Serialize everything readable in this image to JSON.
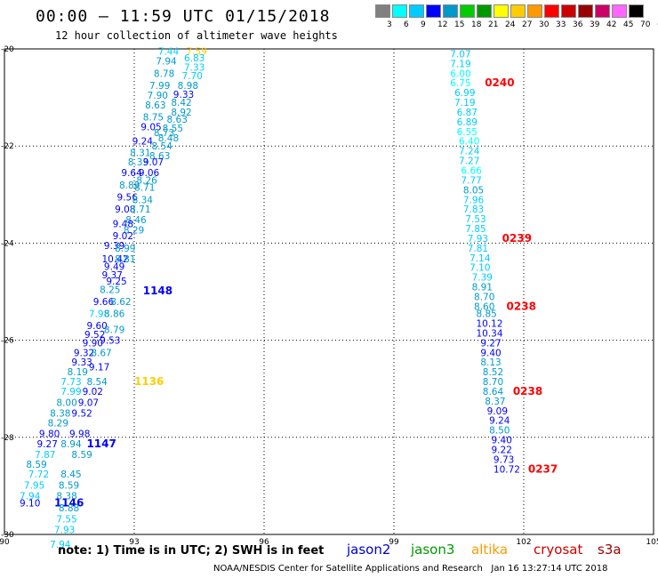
{
  "header": {
    "title": "00:00 – 11:59 UTC 01/15/2018",
    "subtitle": "12 hour collection of altimeter wave heights"
  },
  "colorbar": {
    "colors": [
      "#808080",
      "#00ffff",
      "#00ccff",
      "#0000ff",
      "#0099cc",
      "#00cc00",
      "#009900",
      "#ffff00",
      "#ffcc00",
      "#ff9900",
      "#ff0000",
      "#cc0000",
      "#990000",
      "#cc0066",
      "#ff66ff",
      "#000000"
    ],
    "labels": [
      "3",
      "6",
      "9",
      "12",
      "15",
      "18",
      "21",
      "24",
      "27",
      "30",
      "33",
      "36",
      "39",
      "42",
      "45",
      "70",
      "(ft)"
    ]
  },
  "axes": {
    "x_ticks": [
      "90",
      "93",
      "96",
      "99",
      "102",
      "105"
    ],
    "y_ticks": [
      "-20",
      "-22",
      "-24",
      "-26",
      "-28",
      "-30"
    ]
  },
  "chart_data": {
    "type": "scatter",
    "xlim": [
      90,
      105
    ],
    "ylim": [
      -30,
      -20
    ],
    "grid": true,
    "points": [
      {
        "x": 93.55,
        "y": -20.05,
        "v": "7.44",
        "c": "#00ccff"
      },
      {
        "x": 94.2,
        "y": -20.05,
        "v": "7.59",
        "c": "#ffcc00"
      },
      {
        "x": 94.15,
        "y": -20.18,
        "v": "6.83",
        "c": "#00ccff"
      },
      {
        "x": 93.5,
        "y": -20.25,
        "v": "7.94",
        "c": "#0099cc"
      },
      {
        "x": 94.15,
        "y": -20.38,
        "v": "7.33",
        "c": "#00ccff"
      },
      {
        "x": 93.45,
        "y": -20.5,
        "v": "8.78",
        "c": "#0099cc"
      },
      {
        "x": 94.1,
        "y": -20.55,
        "v": "7.70",
        "c": "#00ccff"
      },
      {
        "x": 93.35,
        "y": -20.75,
        "v": "7.99",
        "c": "#0099cc"
      },
      {
        "x": 94.0,
        "y": -20.75,
        "v": "8.98",
        "c": "#0099cc"
      },
      {
        "x": 93.3,
        "y": -20.95,
        "v": "7.90",
        "c": "#0099cc"
      },
      {
        "x": 93.9,
        "y": -20.93,
        "v": "9.33",
        "c": "#0000ff"
      },
      {
        "x": 93.25,
        "y": -21.15,
        "v": "8.63",
        "c": "#0099cc"
      },
      {
        "x": 93.85,
        "y": -21.1,
        "v": "8.42",
        "c": "#0099cc"
      },
      {
        "x": 93.85,
        "y": -21.3,
        "v": "8.92",
        "c": "#0099cc"
      },
      {
        "x": 93.2,
        "y": -21.4,
        "v": "8.75",
        "c": "#0099cc"
      },
      {
        "x": 93.75,
        "y": -21.45,
        "v": "8.63",
        "c": "#0099cc"
      },
      {
        "x": 93.15,
        "y": -21.6,
        "v": "9.05",
        "c": "#0000ff"
      },
      {
        "x": 93.65,
        "y": -21.63,
        "v": "8.55",
        "c": "#0099cc"
      },
      {
        "x": 93.45,
        "y": -21.72,
        "v": "8.73",
        "c": "#0099cc"
      },
      {
        "x": 93.55,
        "y": -21.83,
        "v": "8.48",
        "c": "#0099cc"
      },
      {
        "x": 92.95,
        "y": -21.9,
        "v": "9.24",
        "c": "#0000ff"
      },
      {
        "x": 93.4,
        "y": -22.0,
        "v": "8.54",
        "c": "#0099cc"
      },
      {
        "x": 92.9,
        "y": -22.13,
        "v": "8.31",
        "c": "#0099cc"
      },
      {
        "x": 93.35,
        "y": -22.2,
        "v": "8.63",
        "c": "#0099cc"
      },
      {
        "x": 92.85,
        "y": -22.33,
        "v": "8.33",
        "c": "#0099cc"
      },
      {
        "x": 93.2,
        "y": -22.33,
        "v": "9.07",
        "c": "#0000ff"
      },
      {
        "x": 92.7,
        "y": -22.55,
        "v": "9.64",
        "c": "#0000ff"
      },
      {
        "x": 93.1,
        "y": -22.55,
        "v": "9.06",
        "c": "#0000ff"
      },
      {
        "x": 93.05,
        "y": -22.7,
        "v": "8.26",
        "c": "#0099cc"
      },
      {
        "x": 92.65,
        "y": -22.8,
        "v": "8.89",
        "c": "#0099cc"
      },
      {
        "x": 93.0,
        "y": -22.85,
        "v": "8.71",
        "c": "#0099cc"
      },
      {
        "x": 92.6,
        "y": -23.05,
        "v": "9.56",
        "c": "#0000ff"
      },
      {
        "x": 92.95,
        "y": -23.1,
        "v": "8.34",
        "c": "#0099cc"
      },
      {
        "x": 92.55,
        "y": -23.3,
        "v": "9.08",
        "c": "#0000ff"
      },
      {
        "x": 92.9,
        "y": -23.3,
        "v": "8.71",
        "c": "#0099cc"
      },
      {
        "x": 92.8,
        "y": -23.52,
        "v": "8.46",
        "c": "#0099cc"
      },
      {
        "x": 92.5,
        "y": -23.6,
        "v": "9.48",
        "c": "#0000ff"
      },
      {
        "x": 92.75,
        "y": -23.73,
        "v": "8.29",
        "c": "#0099cc"
      },
      {
        "x": 92.5,
        "y": -23.85,
        "v": "9.02",
        "c": "#0000ff"
      },
      {
        "x": 92.3,
        "y": -24.05,
        "v": "9.39",
        "c": "#0000ff"
      },
      {
        "x": 92.55,
        "y": -24.1,
        "v": "8.99",
        "c": "#0099cc"
      },
      {
        "x": 92.25,
        "y": -24.32,
        "v": "10.42",
        "c": "#0000ff"
      },
      {
        "x": 92.55,
        "y": -24.32,
        "v": "8.81",
        "c": "#0099cc"
      },
      {
        "x": 92.3,
        "y": -24.48,
        "v": "9.49",
        "c": "#0000ff"
      },
      {
        "x": 92.25,
        "y": -24.65,
        "v": "9.37",
        "c": "#0000ff"
      },
      {
        "x": 92.35,
        "y": -24.78,
        "v": "9.25",
        "c": "#0000ff"
      },
      {
        "x": 92.2,
        "y": -24.95,
        "v": "8.25",
        "c": "#0099cc"
      },
      {
        "x": 93.2,
        "y": -24.98,
        "v": "1148",
        "c": "#0000ff",
        "big": true
      },
      {
        "x": 92.05,
        "y": -25.2,
        "v": "9.66",
        "c": "#0000ff"
      },
      {
        "x": 92.45,
        "y": -25.2,
        "v": "8.62",
        "c": "#0099cc"
      },
      {
        "x": 91.95,
        "y": -25.45,
        "v": "7.98",
        "c": "#00ccff"
      },
      {
        "x": 92.3,
        "y": -25.45,
        "v": "8.86",
        "c": "#0099cc"
      },
      {
        "x": 91.9,
        "y": -25.7,
        "v": "9.60",
        "c": "#0000ff"
      },
      {
        "x": 92.3,
        "y": -25.78,
        "v": "8.79",
        "c": "#0099cc"
      },
      {
        "x": 91.85,
        "y": -25.88,
        "v": "9.52",
        "c": "#0000ff"
      },
      {
        "x": 92.2,
        "y": -26.0,
        "v": "9.53",
        "c": "#0000ff"
      },
      {
        "x": 91.8,
        "y": -26.05,
        "v": "9.90",
        "c": "#0000ff"
      },
      {
        "x": 91.6,
        "y": -26.25,
        "v": "9.32",
        "c": "#0000ff"
      },
      {
        "x": 92.0,
        "y": -26.25,
        "v": "8.67",
        "c": "#0099cc"
      },
      {
        "x": 91.55,
        "y": -26.45,
        "v": "9.33",
        "c": "#0000ff"
      },
      {
        "x": 91.95,
        "y": -26.55,
        "v": "9.17",
        "c": "#0000ff"
      },
      {
        "x": 91.45,
        "y": -26.65,
        "v": "8.19",
        "c": "#0099cc"
      },
      {
        "x": 91.3,
        "y": -26.85,
        "v": "7.73",
        "c": "#00ccff"
      },
      {
        "x": 91.9,
        "y": -26.85,
        "v": "8.54",
        "c": "#0099cc"
      },
      {
        "x": 93.0,
        "y": -26.85,
        "v": "1136",
        "c": "#ffcc00",
        "big": true
      },
      {
        "x": 91.3,
        "y": -27.05,
        "v": "7.99",
        "c": "#00ccff"
      },
      {
        "x": 91.8,
        "y": -27.05,
        "v": "9.02",
        "c": "#0000ff"
      },
      {
        "x": 91.2,
        "y": -27.28,
        "v": "8.00",
        "c": "#0099cc"
      },
      {
        "x": 91.7,
        "y": -27.28,
        "v": "9.07",
        "c": "#0000ff"
      },
      {
        "x": 91.05,
        "y": -27.5,
        "v": "8.38",
        "c": "#0099cc"
      },
      {
        "x": 91.55,
        "y": -27.5,
        "v": "9.52",
        "c": "#0000ff"
      },
      {
        "x": 91.0,
        "y": -27.7,
        "v": "8.29",
        "c": "#0099cc"
      },
      {
        "x": 90.8,
        "y": -27.92,
        "v": "9.80",
        "c": "#0000ff"
      },
      {
        "x": 91.5,
        "y": -27.92,
        "v": "9.98",
        "c": "#0000ff"
      },
      {
        "x": 90.75,
        "y": -28.13,
        "v": "9.27",
        "c": "#0000ff"
      },
      {
        "x": 91.3,
        "y": -28.13,
        "v": "8.94",
        "c": "#0099cc"
      },
      {
        "x": 91.9,
        "y": -28.13,
        "v": "1147",
        "c": "#0000ff",
        "big": true
      },
      {
        "x": 90.7,
        "y": -28.35,
        "v": "7.87",
        "c": "#00ccff"
      },
      {
        "x": 91.55,
        "y": -28.35,
        "v": "8.59",
        "c": "#0099cc"
      },
      {
        "x": 90.5,
        "y": -28.55,
        "v": "8.59",
        "c": "#0099cc"
      },
      {
        "x": 90.55,
        "y": -28.75,
        "v": "7.72",
        "c": "#00ccff"
      },
      {
        "x": 91.3,
        "y": -28.75,
        "v": "8.45",
        "c": "#0099cc"
      },
      {
        "x": 90.45,
        "y": -28.98,
        "v": "7.95",
        "c": "#00ccff"
      },
      {
        "x": 91.25,
        "y": -28.98,
        "v": "8.59",
        "c": "#0099cc"
      },
      {
        "x": 90.35,
        "y": -29.2,
        "v": "7.94",
        "c": "#00ccff"
      },
      {
        "x": 91.2,
        "y": -29.2,
        "v": "8.38",
        "c": "#0099cc"
      },
      {
        "x": 90.35,
        "y": -29.35,
        "v": "9.10",
        "c": "#0000ff"
      },
      {
        "x": 91.15,
        "y": -29.35,
        "v": "1146",
        "c": "#0000ff",
        "big": true
      },
      {
        "x": 91.25,
        "y": -29.45,
        "v": "8.88",
        "c": "#0099cc"
      },
      {
        "x": 91.2,
        "y": -29.68,
        "v": "7.55",
        "c": "#00ccff"
      },
      {
        "x": 91.15,
        "y": -29.9,
        "v": "7.93",
        "c": "#00ccff"
      },
      {
        "x": 91.05,
        "y": -30.2,
        "v": "7.94",
        "c": "#00ccff"
      },
      {
        "x": 100.3,
        "y": -20.1,
        "v": "7.07",
        "c": "#00ccff"
      },
      {
        "x": 100.3,
        "y": -20.3,
        "v": "7.19",
        "c": "#00ccff"
      },
      {
        "x": 100.3,
        "y": -20.5,
        "v": "6.00",
        "c": "#00ffff"
      },
      {
        "x": 100.3,
        "y": -20.7,
        "v": "6.75",
        "c": "#00ffff"
      },
      {
        "x": 101.1,
        "y": -20.7,
        "v": "0240",
        "c": "#ff0000",
        "big": true
      },
      {
        "x": 100.4,
        "y": -20.9,
        "v": "6.99",
        "c": "#00ccff"
      },
      {
        "x": 100.4,
        "y": -21.1,
        "v": "7.19",
        "c": "#00ccff"
      },
      {
        "x": 100.45,
        "y": -21.3,
        "v": "6.87",
        "c": "#00ccff"
      },
      {
        "x": 100.45,
        "y": -21.5,
        "v": "6.89",
        "c": "#00ccff"
      },
      {
        "x": 100.45,
        "y": -21.7,
        "v": "6.55",
        "c": "#00ffff"
      },
      {
        "x": 100.5,
        "y": -21.9,
        "v": "6.40",
        "c": "#00ffff"
      },
      {
        "x": 100.5,
        "y": -22.1,
        "v": "7.24",
        "c": "#00ccff"
      },
      {
        "x": 100.5,
        "y": -22.3,
        "v": "7.27",
        "c": "#00ccff"
      },
      {
        "x": 100.55,
        "y": -22.5,
        "v": "6.66",
        "c": "#00ffff"
      },
      {
        "x": 100.55,
        "y": -22.7,
        "v": "7.77",
        "c": "#00ccff"
      },
      {
        "x": 100.6,
        "y": -22.9,
        "v": "8.05",
        "c": "#0099cc"
      },
      {
        "x": 100.6,
        "y": -23.1,
        "v": "7.96",
        "c": "#00ccff"
      },
      {
        "x": 100.6,
        "y": -23.3,
        "v": "7.83",
        "c": "#00ccff"
      },
      {
        "x": 100.65,
        "y": -23.5,
        "v": "7.53",
        "c": "#00ccff"
      },
      {
        "x": 100.65,
        "y": -23.7,
        "v": "7.85",
        "c": "#00ccff"
      },
      {
        "x": 100.7,
        "y": -23.9,
        "v": "7.93",
        "c": "#00ccff"
      },
      {
        "x": 101.5,
        "y": -23.9,
        "v": "0239",
        "c": "#ff0000",
        "big": true
      },
      {
        "x": 100.7,
        "y": -24.1,
        "v": "7.81",
        "c": "#00ccff"
      },
      {
        "x": 100.75,
        "y": -24.3,
        "v": "7.14",
        "c": "#00ccff"
      },
      {
        "x": 100.75,
        "y": -24.5,
        "v": "7.10",
        "c": "#00ccff"
      },
      {
        "x": 100.8,
        "y": -24.7,
        "v": "7.39",
        "c": "#00ccff"
      },
      {
        "x": 100.8,
        "y": -24.9,
        "v": "8.91",
        "c": "#0099cc"
      },
      {
        "x": 100.85,
        "y": -25.1,
        "v": "8.70",
        "c": "#0099cc"
      },
      {
        "x": 100.85,
        "y": -25.3,
        "v": "8.60",
        "c": "#0099cc"
      },
      {
        "x": 101.6,
        "y": -25.3,
        "v": "0238",
        "c": "#ff0000",
        "big": true
      },
      {
        "x": 100.9,
        "y": -25.45,
        "v": "8.85",
        "c": "#0099cc"
      },
      {
        "x": 100.9,
        "y": -25.65,
        "v": "10.12",
        "c": "#0000ff"
      },
      {
        "x": 100.9,
        "y": -25.85,
        "v": "10.34",
        "c": "#0000ff"
      },
      {
        "x": 101.0,
        "y": -26.05,
        "v": "9.27",
        "c": "#0000ff"
      },
      {
        "x": 101.0,
        "y": -26.25,
        "v": "9.40",
        "c": "#0000ff"
      },
      {
        "x": 101.0,
        "y": -26.45,
        "v": "8.13",
        "c": "#0099cc"
      },
      {
        "x": 101.05,
        "y": -26.65,
        "v": "8.52",
        "c": "#0099cc"
      },
      {
        "x": 101.05,
        "y": -26.85,
        "v": "8.70",
        "c": "#0099cc"
      },
      {
        "x": 101.05,
        "y": -27.05,
        "v": "8.64",
        "c": "#0099cc"
      },
      {
        "x": 101.75,
        "y": -27.05,
        "v": "0238",
        "c": "#ff0000",
        "big": true
      },
      {
        "x": 101.1,
        "y": -27.25,
        "v": "8.37",
        "c": "#0099cc"
      },
      {
        "x": 101.15,
        "y": -27.45,
        "v": "9.09",
        "c": "#0000ff"
      },
      {
        "x": 101.2,
        "y": -27.65,
        "v": "9.24",
        "c": "#0000ff"
      },
      {
        "x": 101.2,
        "y": -27.85,
        "v": "8.50",
        "c": "#0099cc"
      },
      {
        "x": 101.25,
        "y": -28.05,
        "v": "9.40",
        "c": "#0000ff"
      },
      {
        "x": 101.25,
        "y": -28.25,
        "v": "9.22",
        "c": "#0000ff"
      },
      {
        "x": 101.3,
        "y": -28.45,
        "v": "9.73",
        "c": "#0000ff"
      },
      {
        "x": 101.3,
        "y": -28.65,
        "v": "10.72",
        "c": "#0000ff"
      },
      {
        "x": 102.1,
        "y": -28.65,
        "v": "0237",
        "c": "#ff0000",
        "big": true
      }
    ]
  },
  "footer": {
    "note": "note: 1) Time is in UTC; 2) SWH is in feet",
    "satellites": [
      {
        "name": "jason2",
        "color": "#0000cc"
      },
      {
        "name": "jason3",
        "color": "#009900"
      },
      {
        "name": "altika",
        "color": "#ff9900"
      },
      {
        "name": "cryosat",
        "color": "#cc0000"
      },
      {
        "name": "s3a",
        "color": "#990000"
      }
    ],
    "credit": "NOAA/NESDIS Center for Satellite Applications and Research   Jan 16 13:27:14 UTC 2018"
  }
}
